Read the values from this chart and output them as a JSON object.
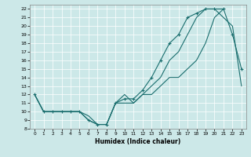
{
  "title": "",
  "xlabel": "Humidex (Indice chaleur)",
  "xlim": [
    -0.5,
    23.5
  ],
  "ylim": [
    8,
    22.5
  ],
  "xticks": [
    0,
    1,
    2,
    3,
    4,
    5,
    6,
    7,
    8,
    9,
    10,
    11,
    12,
    13,
    14,
    15,
    16,
    17,
    18,
    19,
    20,
    21,
    22,
    23
  ],
  "yticks": [
    8,
    9,
    10,
    11,
    12,
    13,
    14,
    15,
    16,
    17,
    18,
    19,
    20,
    21,
    22
  ],
  "bg_color": "#cce8e8",
  "line_color": "#1a6e6e",
  "grid_color": "#ffffff",
  "line1_x": [
    0,
    1,
    2,
    3,
    4,
    5,
    6,
    7,
    8,
    9,
    10,
    11,
    12,
    13,
    14,
    15,
    16,
    17,
    18,
    19,
    20,
    21
  ],
  "line1_y": [
    12,
    10,
    10,
    10,
    10,
    10,
    9,
    8.5,
    8.5,
    11,
    12,
    11,
    12,
    12,
    13,
    14,
    14,
    15,
    16,
    18,
    21,
    22
  ],
  "line2_x": [
    0,
    1,
    2,
    3,
    4,
    5,
    6,
    7,
    8,
    9,
    10,
    11,
    12,
    13,
    14,
    15,
    16,
    17,
    18,
    19,
    20,
    21,
    22,
    23
  ],
  "line2_y": [
    12,
    10,
    10,
    10,
    10,
    10,
    9,
    8.5,
    8.5,
    11,
    11.5,
    11.5,
    12.5,
    14,
    16,
    18,
    19,
    21,
    21.5,
    22,
    22,
    22,
    19,
    15
  ],
  "line3_x": [
    0,
    1,
    2,
    3,
    4,
    5,
    6,
    7,
    8,
    9,
    10,
    11,
    12,
    13,
    14,
    15,
    16,
    17,
    18,
    19,
    20,
    21,
    22,
    23
  ],
  "line3_y": [
    12,
    10,
    10,
    10,
    10,
    10,
    9.5,
    8.5,
    8.5,
    11,
    11,
    11,
    12,
    13,
    14,
    16,
    17,
    19,
    21,
    22,
    22,
    21,
    20,
    13
  ]
}
